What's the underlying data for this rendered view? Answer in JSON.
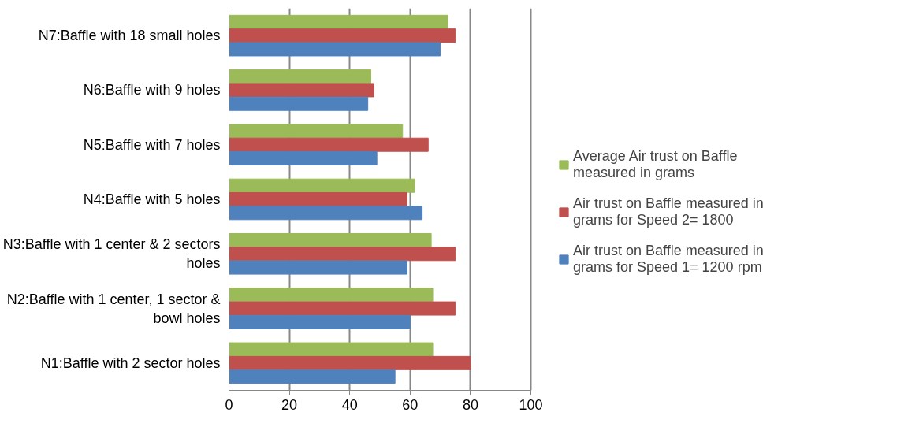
{
  "chart_data": {
    "type": "bar",
    "orientation": "horizontal",
    "categories": [
      "N7:Baffle with 18 small holes",
      "N6:Baffle with 9 holes",
      "N5:Baffle with 7 holes",
      "N4:Baffle with 5 holes",
      "N3:Baffle with 1 center & 2 sectors holes",
      "N2:Baffle with 1 center, 1 sector & bowl holes",
      "N1:Baffle with 2 sector holes"
    ],
    "series": [
      {
        "name": "Average Air trust on Baffle measured in grams",
        "color": "#9bbb59",
        "values": [
          72.5,
          47,
          57.5,
          61.5,
          67,
          67.5,
          67.5
        ]
      },
      {
        "name": "Air trust on Baffle measured in grams for Speed 2= 1800",
        "color": "#c0504d",
        "values": [
          75,
          48,
          66,
          59,
          75,
          75,
          80
        ]
      },
      {
        "name": "Air trust on Baffle measured in grams for Speed 1= 1200 rpm",
        "color": "#4f81bd",
        "values": [
          70,
          46,
          49,
          64,
          59,
          60,
          55
        ]
      }
    ],
    "xlim": [
      0,
      100
    ],
    "xticks": [
      0,
      20,
      40,
      60,
      80,
      100
    ],
    "grid": "x",
    "legend": "right"
  }
}
